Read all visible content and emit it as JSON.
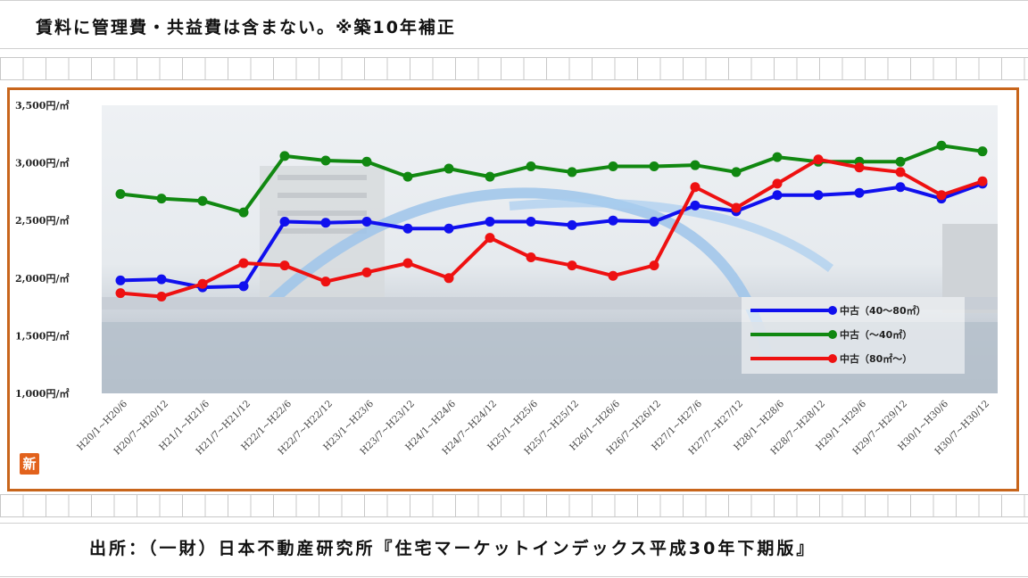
{
  "header": {
    "note": "賃料に管理費・共益費は含まない。※築10年補正"
  },
  "footer": {
    "source": "出所：（一財）日本不動産研究所『住宅マーケットインデックス平成30年下期版』"
  },
  "badge": {
    "label": "新"
  },
  "chart_data": {
    "type": "line",
    "categories": [
      "H20/1~H20/6",
      "H20/7~H20/12",
      "H21/1~H21/6",
      "H21/7~H21/12",
      "H22/1~H22/6",
      "H22/7~H22/12",
      "H23/1~H23/6",
      "H23/7~H23/12",
      "H24/1~H24/6",
      "H24/7~H24/12",
      "H25/1~H25/6",
      "H25/7~H25/12",
      "H26/1~H26/6",
      "H26/7~H26/12",
      "H27/1~H27/6",
      "H27/7~H27/12",
      "H28/1~H28/6",
      "H28/7~H28/12",
      "H29/1~H29/6",
      "H29/7~H29/12",
      "H30/1~H30/6",
      "H30/7~H30/12"
    ],
    "yticks": [
      "1,000円/㎡",
      "1,500円/㎡",
      "2,000円/㎡",
      "2,500円/㎡",
      "3,000円/㎡",
      "3,500円/㎡"
    ],
    "ylim": [
      1000,
      3500
    ],
    "legend_position": "right",
    "series": [
      {
        "name": "中古（40～80㎡）",
        "color": "#1010ee",
        "values": [
          1980,
          1990,
          1920,
          1930,
          2490,
          2480,
          2490,
          2430,
          2430,
          2490,
          2490,
          2460,
          2500,
          2490,
          2630,
          2580,
          2720,
          2720,
          2740,
          2790,
          2690,
          2820
        ]
      },
      {
        "name": "中古（～40㎡）",
        "color": "#118811",
        "values": [
          2730,
          2690,
          2670,
          2570,
          3060,
          3020,
          3010,
          2880,
          2950,
          2880,
          2970,
          2920,
          2970,
          2970,
          2980,
          2920,
          3050,
          3010,
          3010,
          3010,
          3150,
          3100
        ]
      },
      {
        "name": "中古（80㎡～）",
        "color": "#ee1111",
        "values": [
          1870,
          1840,
          1950,
          2130,
          2110,
          1970,
          2050,
          2130,
          2000,
          2350,
          2180,
          2110,
          2020,
          2110,
          2790,
          2610,
          2820,
          3030,
          2960,
          2920,
          2720,
          2840
        ]
      }
    ]
  }
}
